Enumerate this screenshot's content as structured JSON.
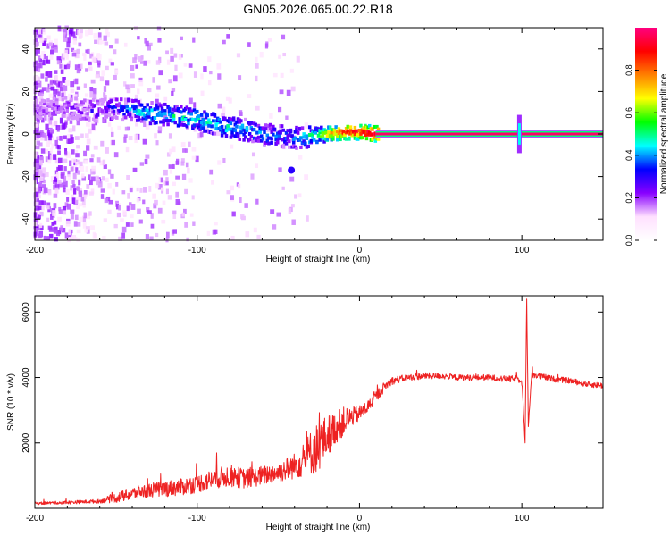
{
  "figure": {
    "title": "GN05.2026.065.00.22.R18"
  },
  "chart_data": [
    {
      "type": "heatmap",
      "xlabel": "Height of straight line (km)",
      "ylabel": "Frequency (Hz)",
      "xlim": [
        -200,
        150
      ],
      "ylim": [
        -50,
        50
      ],
      "xticks": [
        -200,
        -100,
        0,
        100
      ],
      "yticks": [
        -40,
        -20,
        0,
        20,
        40
      ],
      "grid": false,
      "colorbar": {
        "label": "Normalized spectral amplitude",
        "range": [
          0,
          1
        ],
        "ticks": [
          0.0,
          0.2,
          0.4,
          0.6,
          0.8
        ],
        "tick_labels": [
          "0.0",
          "0.2",
          "0.4",
          "0.6",
          "0.8"
        ],
        "colors": [
          "#ffffff",
          "#ffe0ff",
          "#8800ff",
          "#0000ff",
          "#00ffff",
          "#00ff00",
          "#ffff00",
          "#ff8000",
          "#ff0000",
          "#ff0080"
        ]
      },
      "ridge": {
        "x": [
          -200,
          -180,
          -160,
          -150,
          -140,
          -130,
          -120,
          -110,
          -100,
          -90,
          -80,
          -70,
          -60,
          -50,
          -40,
          -30,
          -20,
          -10,
          0,
          10,
          50,
          95,
          100,
          105,
          150
        ],
        "y": [
          12,
          12,
          11,
          12,
          11,
          10,
          9,
          8,
          7,
          5,
          3,
          2,
          0,
          -1,
          -2,
          -1,
          0,
          1,
          1,
          0,
          0,
          0,
          2,
          0,
          0
        ],
        "amplitude": [
          0.15,
          0.18,
          0.25,
          0.3,
          0.4,
          0.45,
          0.45,
          0.45,
          0.45,
          0.45,
          0.45,
          0.4,
          0.4,
          0.35,
          0.35,
          0.5,
          0.7,
          0.85,
          0.95,
          0.98,
          0.98,
          0.98,
          0.5,
          0.98,
          0.98
        ]
      },
      "spurs": [
        {
          "x": -42,
          "y": -17,
          "amplitude": 0.3
        }
      ]
    },
    {
      "type": "line",
      "xlabel": "Height of straight line (km)",
      "ylabel": "SNR (10 * v/v)",
      "xlim": [
        -200,
        150
      ],
      "ylim": [
        0,
        6500
      ],
      "xticks": [
        -200,
        -100,
        0,
        100
      ],
      "yticks": [
        2000,
        4000,
        6000
      ],
      "grid": false,
      "color": "#ee2222",
      "series": [
        {
          "x": [
            -200,
            -180,
            -160,
            -150,
            -140,
            -130,
            -120,
            -110,
            -100,
            -90,
            -80,
            -70,
            -60,
            -50,
            -45,
            -40,
            -35,
            -30,
            -25,
            -20,
            -15,
            -10,
            -5,
            0,
            5,
            10,
            15,
            20,
            30,
            40,
            50,
            60,
            70,
            80,
            90,
            100,
            102,
            103,
            104,
            106,
            110,
            120,
            130,
            140,
            150
          ],
          "y": [
            150,
            180,
            220,
            320,
            450,
            550,
            600,
            650,
            750,
            900,
            1000,
            900,
            1000,
            1100,
            1200,
            1300,
            1450,
            1700,
            1900,
            2200,
            2450,
            2650,
            2800,
            2900,
            3100,
            3400,
            3700,
            3900,
            4000,
            4050,
            4050,
            4000,
            4000,
            4000,
            3950,
            3950,
            2000,
            6400,
            2500,
            4100,
            4050,
            3950,
            3900,
            3800,
            3750
          ],
          "noise": [
            40,
            50,
            60,
            150,
            200,
            220,
            250,
            260,
            280,
            300,
            350,
            300,
            300,
            320,
            350,
            400,
            500,
            700,
            800,
            650,
            500,
            450,
            300,
            250,
            200,
            180,
            150,
            120,
            100,
            100,
            90,
            90,
            90,
            90,
            100,
            120,
            0,
            0,
            0,
            120,
            100,
            90,
            90,
            90,
            90
          ]
        }
      ]
    }
  ]
}
